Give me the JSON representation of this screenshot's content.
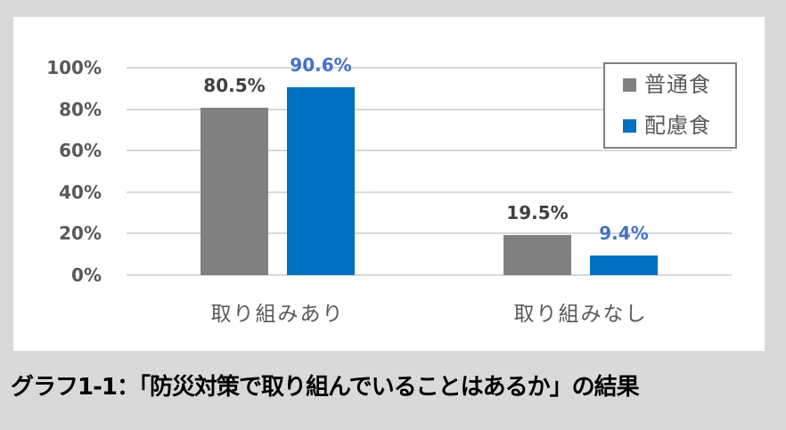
{
  "chart_data": {
    "type": "bar",
    "title": "",
    "categories": [
      "取り組みあり",
      "取り組みなし"
    ],
    "series": [
      {
        "name": "普通食",
        "values": [
          80.5,
          19.5
        ],
        "labels": [
          "80.5%",
          "19.5%"
        ],
        "color": "#808080",
        "label_color": "#404040"
      },
      {
        "name": "配慮食",
        "values": [
          90.6,
          9.4
        ],
        "labels": [
          "90.6%",
          "9.4%"
        ],
        "color": "#0070c0",
        "label_color": "#4472c4"
      }
    ],
    "xlabel": "",
    "ylabel": "",
    "ylim": [
      0,
      100
    ],
    "yticks": [
      "0%",
      "20%",
      "40%",
      "60%",
      "80%",
      "100%"
    ],
    "grid": true,
    "legend_position": "top-right",
    "data_labels": true
  },
  "caption": "グラフ1-1：「防災対策で取り組んでいることはあるか」の結果",
  "colors": {
    "background": "#d9d9d9",
    "panel": "#ffffff",
    "gridline": "#d9d9d9",
    "series_normal": "#808080",
    "series_special": "#0070c0"
  }
}
